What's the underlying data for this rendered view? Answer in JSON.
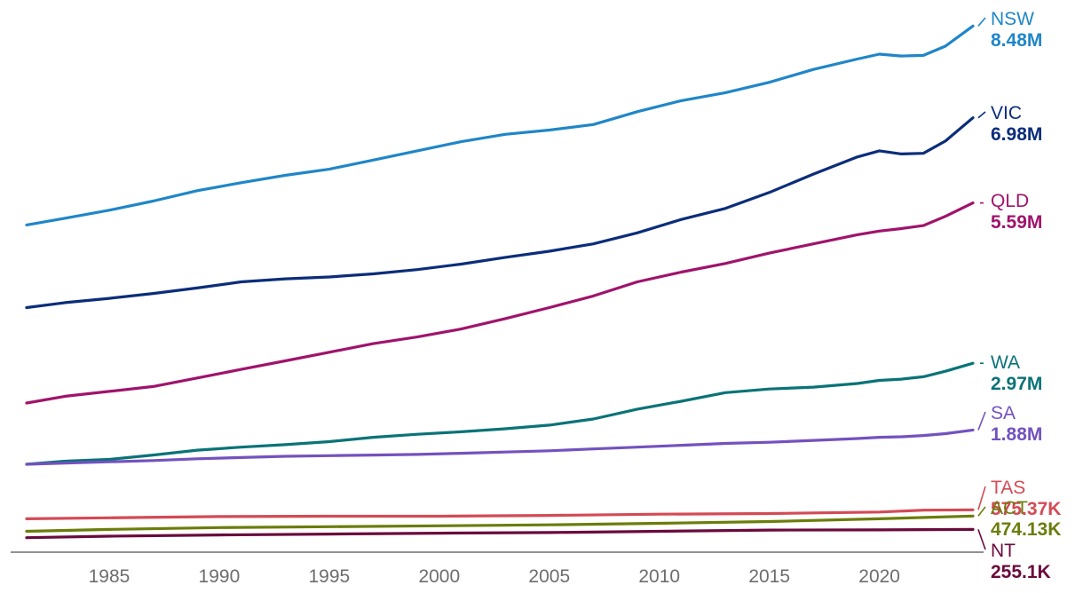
{
  "chart_data": {
    "type": "line",
    "title": "",
    "xlabel": "",
    "ylabel": "",
    "x_ticks": [
      1985,
      1990,
      1995,
      2000,
      2005,
      2010,
      2015,
      2020
    ],
    "xlim": [
      1981.25,
      2024.25
    ],
    "ylim": [
      0,
      8600000
    ],
    "grid": false,
    "legend": "direct labels at line ends (right)",
    "series": [
      {
        "name": "NSW",
        "end_label": "8.48M",
        "color": "#1f86c8",
        "points": [
          [
            1981.25,
            5230000
          ],
          [
            1983,
            5340000
          ],
          [
            1985,
            5470000
          ],
          [
            1987,
            5620000
          ],
          [
            1989,
            5790000
          ],
          [
            1991,
            5920000
          ],
          [
            1993,
            6040000
          ],
          [
            1995,
            6140000
          ],
          [
            1997,
            6290000
          ],
          [
            1999,
            6440000
          ],
          [
            2001,
            6590000
          ],
          [
            2003,
            6710000
          ],
          [
            2005,
            6780000
          ],
          [
            2007,
            6870000
          ],
          [
            2009,
            7080000
          ],
          [
            2011,
            7260000
          ],
          [
            2013,
            7390000
          ],
          [
            2015,
            7560000
          ],
          [
            2017,
            7770000
          ],
          [
            2019,
            7940000
          ],
          [
            2020,
            8020000
          ],
          [
            2021,
            7990000
          ],
          [
            2022,
            8000000
          ],
          [
            2023,
            8150000
          ],
          [
            2024.25,
            8480000
          ]
        ]
      },
      {
        "name": "VIC",
        "end_label": "6.98M",
        "color": "#0b2d7a",
        "points": [
          [
            1981.25,
            3880000
          ],
          [
            1983,
            3960000
          ],
          [
            1985,
            4030000
          ],
          [
            1987,
            4110000
          ],
          [
            1989,
            4200000
          ],
          [
            1991,
            4300000
          ],
          [
            1993,
            4350000
          ],
          [
            1995,
            4380000
          ],
          [
            1997,
            4430000
          ],
          [
            1999,
            4500000
          ],
          [
            2001,
            4590000
          ],
          [
            2003,
            4700000
          ],
          [
            2005,
            4800000
          ],
          [
            2007,
            4920000
          ],
          [
            2009,
            5100000
          ],
          [
            2011,
            5320000
          ],
          [
            2013,
            5500000
          ],
          [
            2015,
            5760000
          ],
          [
            2017,
            6060000
          ],
          [
            2019,
            6340000
          ],
          [
            2020,
            6440000
          ],
          [
            2021,
            6390000
          ],
          [
            2022,
            6400000
          ],
          [
            2023,
            6600000
          ],
          [
            2024.25,
            6980000
          ]
        ]
      },
      {
        "name": "QLD",
        "end_label": "5.59M",
        "color": "#a0136b",
        "points": [
          [
            1981.25,
            2320000
          ],
          [
            1983,
            2430000
          ],
          [
            1985,
            2510000
          ],
          [
            1987,
            2590000
          ],
          [
            1989,
            2730000
          ],
          [
            1991,
            2870000
          ],
          [
            1993,
            3010000
          ],
          [
            1995,
            3150000
          ],
          [
            1997,
            3290000
          ],
          [
            1999,
            3400000
          ],
          [
            2001,
            3530000
          ],
          [
            2003,
            3700000
          ],
          [
            2005,
            3880000
          ],
          [
            2007,
            4070000
          ],
          [
            2009,
            4300000
          ],
          [
            2011,
            4460000
          ],
          [
            2013,
            4600000
          ],
          [
            2015,
            4770000
          ],
          [
            2017,
            4920000
          ],
          [
            2019,
            5070000
          ],
          [
            2020,
            5130000
          ],
          [
            2021,
            5170000
          ],
          [
            2022,
            5220000
          ],
          [
            2023,
            5370000
          ],
          [
            2024.25,
            5590000
          ]
        ]
      },
      {
        "name": "WA",
        "end_label": "2.97M",
        "color": "#0a7377",
        "points": [
          [
            1981.25,
            1320000
          ],
          [
            1983,
            1370000
          ],
          [
            1985,
            1400000
          ],
          [
            1987,
            1470000
          ],
          [
            1989,
            1550000
          ],
          [
            1991,
            1600000
          ],
          [
            1993,
            1640000
          ],
          [
            1995,
            1690000
          ],
          [
            1997,
            1760000
          ],
          [
            1999,
            1810000
          ],
          [
            2001,
            1850000
          ],
          [
            2003,
            1900000
          ],
          [
            2005,
            1960000
          ],
          [
            2007,
            2060000
          ],
          [
            2009,
            2220000
          ],
          [
            2011,
            2350000
          ],
          [
            2013,
            2490000
          ],
          [
            2015,
            2550000
          ],
          [
            2017,
            2580000
          ],
          [
            2019,
            2640000
          ],
          [
            2020,
            2690000
          ],
          [
            2021,
            2710000
          ],
          [
            2022,
            2750000
          ],
          [
            2023,
            2840000
          ],
          [
            2024.25,
            2970000
          ]
        ]
      },
      {
        "name": "SA",
        "end_label": "1.88M",
        "color": "#7352bf",
        "points": [
          [
            1981.25,
            1320000
          ],
          [
            1983,
            1340000
          ],
          [
            1985,
            1360000
          ],
          [
            1987,
            1380000
          ],
          [
            1989,
            1410000
          ],
          [
            1991,
            1430000
          ],
          [
            1993,
            1450000
          ],
          [
            1995,
            1460000
          ],
          [
            1997,
            1470000
          ],
          [
            1999,
            1480000
          ],
          [
            2001,
            1500000
          ],
          [
            2003,
            1520000
          ],
          [
            2005,
            1540000
          ],
          [
            2007,
            1570000
          ],
          [
            2009,
            1600000
          ],
          [
            2011,
            1630000
          ],
          [
            2013,
            1660000
          ],
          [
            2015,
            1680000
          ],
          [
            2017,
            1710000
          ],
          [
            2019,
            1740000
          ],
          [
            2020,
            1760000
          ],
          [
            2021,
            1770000
          ],
          [
            2022,
            1790000
          ],
          [
            2023,
            1820000
          ],
          [
            2024.25,
            1880000
          ]
        ]
      },
      {
        "name": "TAS",
        "end_label": "575.37K",
        "color": "#d34a55",
        "points": [
          [
            1981.25,
            430000
          ],
          [
            1985,
            445000
          ],
          [
            1990,
            465000
          ],
          [
            1995,
            472000
          ],
          [
            2000,
            472000
          ],
          [
            2005,
            485000
          ],
          [
            2010,
            505000
          ],
          [
            2015,
            515000
          ],
          [
            2020,
            540000
          ],
          [
            2022,
            570000
          ],
          [
            2024.25,
            575370
          ]
        ]
      },
      {
        "name": "ACT",
        "end_label": "474.13K",
        "color": "#6b7d0b",
        "points": [
          [
            1981.25,
            225000
          ],
          [
            1985,
            255000
          ],
          [
            1990,
            285000
          ],
          [
            1995,
            300000
          ],
          [
            2000,
            315000
          ],
          [
            2005,
            330000
          ],
          [
            2010,
            355000
          ],
          [
            2015,
            385000
          ],
          [
            2020,
            430000
          ],
          [
            2024.25,
            474130
          ]
        ]
      },
      {
        "name": "NT",
        "end_label": "255.1K",
        "color": "#6a0a3c",
        "points": [
          [
            1981.25,
            120000
          ],
          [
            1985,
            145000
          ],
          [
            1990,
            165000
          ],
          [
            1995,
            180000
          ],
          [
            2000,
            195000
          ],
          [
            2005,
            205000
          ],
          [
            2010,
            225000
          ],
          [
            2015,
            245000
          ],
          [
            2020,
            248000
          ],
          [
            2024.25,
            255100
          ]
        ]
      }
    ]
  }
}
